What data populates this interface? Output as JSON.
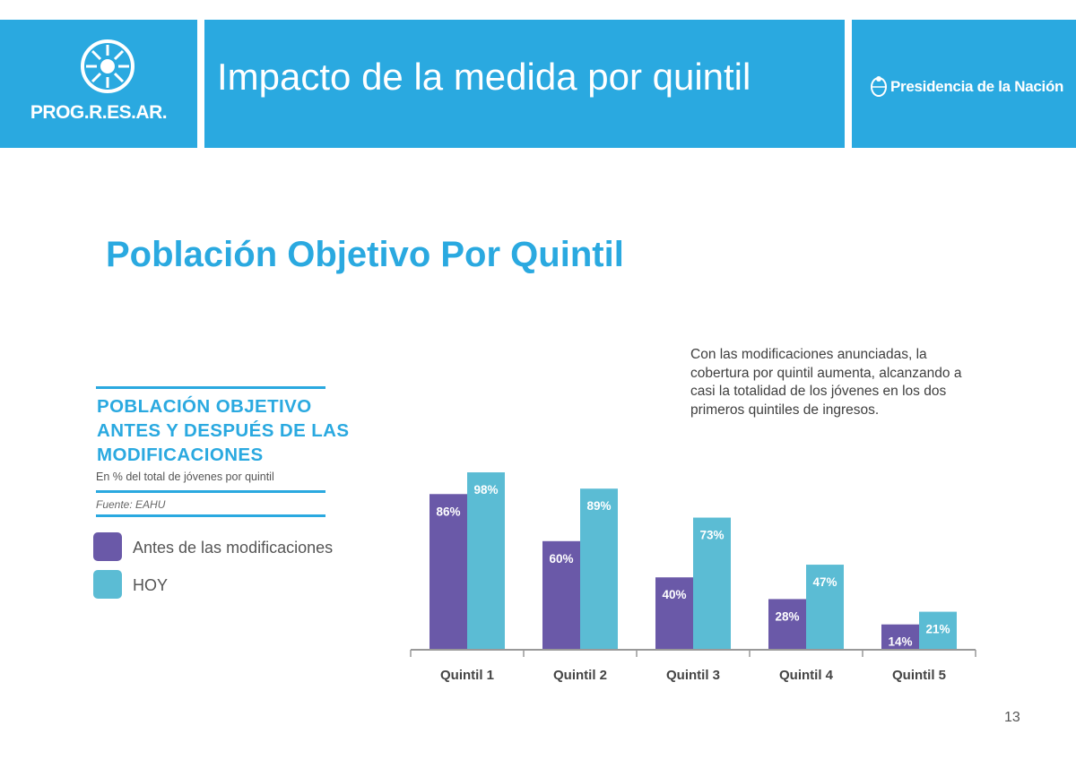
{
  "header": {
    "logo_text": "PROG.R.ES.AR.",
    "title": "Impacto de la medida por quintil",
    "nation_text": "Presidencia de la Nación"
  },
  "section_title": "Población Objetivo Por Quintil",
  "note": "Con las modificaciones anunciadas, la cobertura por quintil aumenta, alcanzando a casi la totalidad de los jóvenes en los dos primeros quintiles de ingresos.",
  "panel": {
    "title": "POBLACIÓN OBJETIVO ANTES Y DESPUÉS DE LAS MODIFICACIONES",
    "subtitle": "En % del total de jóvenes por quintil",
    "source": "Fuente: EAHU"
  },
  "colors": {
    "brand": "#2aa9e0",
    "before": "#6a59a8",
    "today": "#5bbcd4"
  },
  "chart_data": {
    "type": "bar",
    "categories": [
      "Quintil 1",
      "Quintil 2",
      "Quintil 3",
      "Quintil 4",
      "Quintil 5"
    ],
    "series": [
      {
        "name": "Antes de las modificaciones",
        "values": [
          86,
          60,
          40,
          28,
          14
        ],
        "labels": [
          "86%",
          "60%",
          "40%",
          "28%",
          "14%"
        ],
        "color": "#6a59a8"
      },
      {
        "name": "HOY",
        "values": [
          98,
          89,
          73,
          47,
          21
        ],
        "labels": [
          "98%",
          "89%",
          "73%",
          "47%",
          "21%"
        ],
        "color": "#5bbcd4"
      }
    ],
    "ylim": [
      0,
      100
    ],
    "legend": "left",
    "grid": false
  },
  "page_number": "13"
}
